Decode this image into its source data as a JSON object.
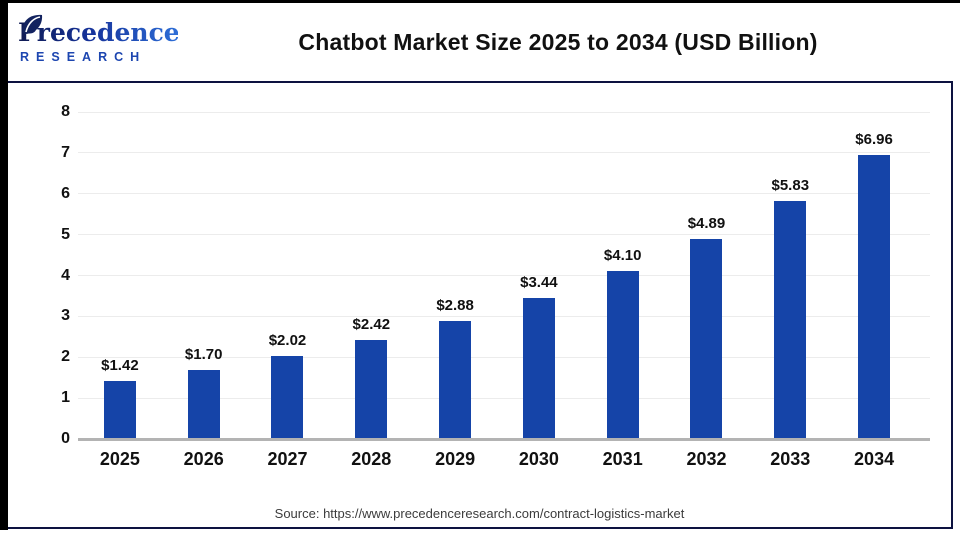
{
  "page": {
    "header": {
      "logo": {
        "brand": "Precedence",
        "subtitle": "RESEARCH"
      },
      "title": "Chatbot Market Size 2025 to 2034 (USD Billion)"
    },
    "footer": {
      "source": "Source: https://www.precedenceresearch.com/contract-logistics-market"
    }
  },
  "chart_data": {
    "type": "bar",
    "title": "Chatbot Market Size 2025 to 2034 (USD Billion)",
    "unit": "USD Billion",
    "categories": [
      "2025",
      "2026",
      "2027",
      "2028",
      "2029",
      "2030",
      "2031",
      "2032",
      "2033",
      "2034"
    ],
    "values": [
      1.42,
      1.7,
      2.02,
      2.42,
      2.88,
      3.44,
      4.1,
      4.89,
      5.83,
      6.96
    ],
    "value_labels": [
      "$1.42",
      "$1.70",
      "$2.02",
      "$2.42",
      "$2.88",
      "$3.44",
      "$4.10",
      "$4.89",
      "$5.83",
      "$6.96"
    ],
    "xlabel": "",
    "ylabel": "",
    "ylim": [
      0,
      8
    ],
    "yticks": [
      0,
      1,
      2,
      3,
      4,
      5,
      6,
      7,
      8
    ],
    "grid": true,
    "legend": false
  },
  "colors": {
    "bar": "#1544a8",
    "panel_border": "#0d1240",
    "grid_line": "#ececec",
    "axis_line": "#b3b3b3",
    "text": "#111111",
    "source_text": "#3c3c3c",
    "logo_navy": "#0f1a52",
    "logo_mid": "#16339b",
    "logo_blue": "#2e6fd8",
    "research_blue": "#1d46b0"
  }
}
